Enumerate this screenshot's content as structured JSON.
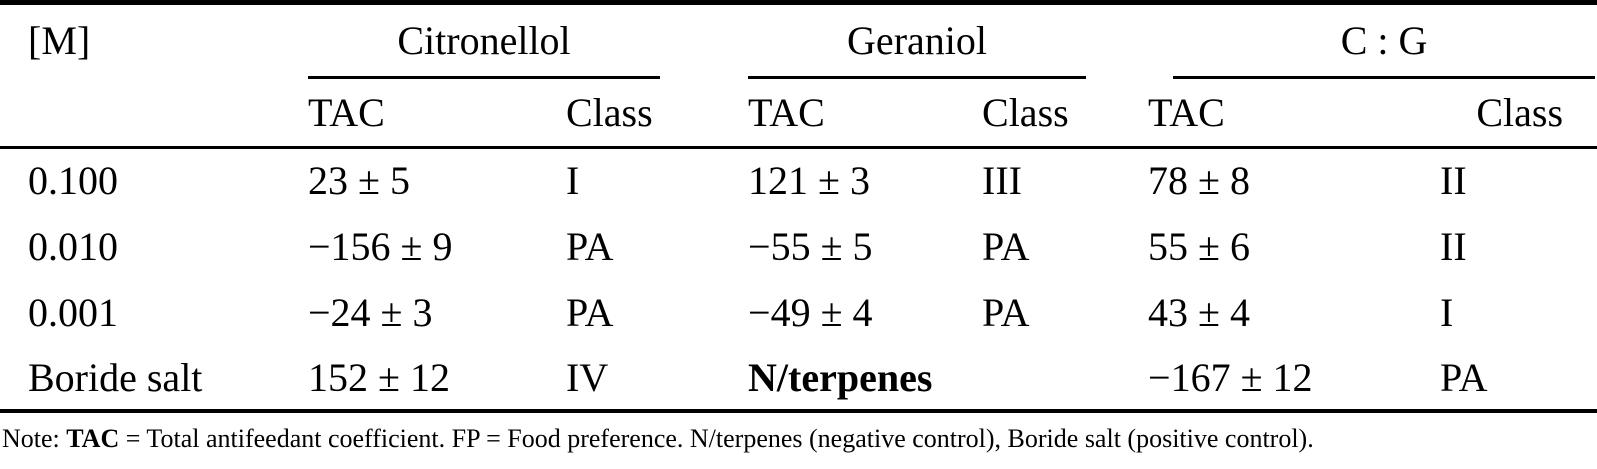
{
  "table": {
    "corner_label": "[M]",
    "col_groups": [
      {
        "label": "Citronellol",
        "subheaders": [
          "TAC",
          "Class"
        ]
      },
      {
        "label": "Geraniol",
        "subheaders": [
          "TAC",
          "Class"
        ]
      },
      {
        "label": "C : G",
        "subheaders": [
          "TAC",
          "Class"
        ]
      }
    ],
    "rows": [
      {
        "label": "0.100",
        "c_tac": "23 ± 5",
        "c_class": "I",
        "g_tac": "121 ± 3",
        "g_class": "III",
        "cg_tac": "78 ± 8",
        "cg_class": "II"
      },
      {
        "label": "0.010",
        "c_tac": "−156 ± 9",
        "c_class": "PA",
        "g_tac": "−55 ± 5",
        "g_class": "PA",
        "cg_tac": "55 ± 6",
        "cg_class": "II"
      },
      {
        "label": "0.001",
        "c_tac": "−24 ± 3",
        "c_class": "PA",
        "g_tac": "−49 ± 4",
        "g_class": "PA",
        "cg_tac": "43 ± 4",
        "cg_class": "I"
      },
      {
        "label": "Boride salt",
        "c_tac": "152 ± 12",
        "c_class": "IV",
        "g_merged": "N/terpenes",
        "cg_tac": "−167 ± 12",
        "cg_class": "PA"
      }
    ],
    "note": {
      "prefix": "Note: ",
      "bold_term": "TAC",
      "rest": " = Total antifeedant coefficient. FP = Food preference. N/terpenes (negative control), Boride salt (positive control)."
    },
    "colors": {
      "text": "#000000",
      "background": "#ffffff",
      "rule": "#000000"
    }
  }
}
